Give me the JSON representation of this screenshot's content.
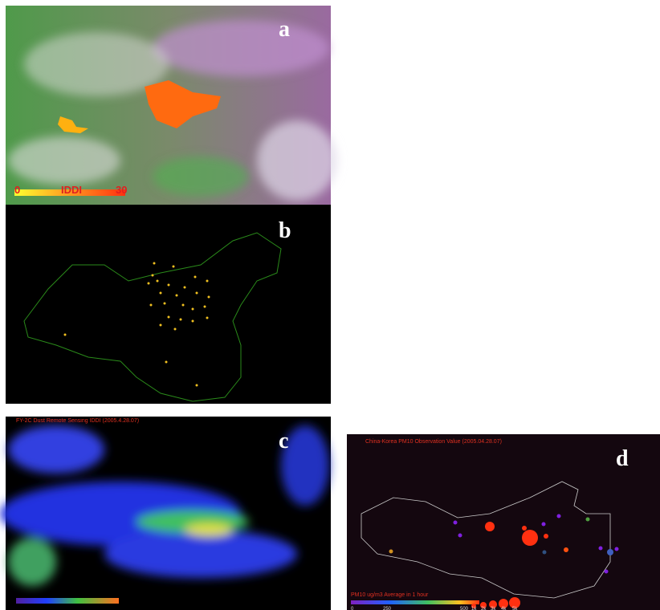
{
  "panels": [
    {
      "label": "a",
      "scale": {
        "min": "0",
        "title": "IDDI",
        "max": "30"
      }
    },
    {
      "label": "b"
    },
    {
      "label": "c",
      "title": "FY-2C Dust Remote Sensing IDDI (2005.4.28.07)"
    },
    {
      "label": "d",
      "title": "China-Korea PM10 Observation Value (2005.04.28.07)",
      "legend_title": "PM10 ug/m3 Average in 1 hour",
      "legend_ticks": [
        "0",
        "250",
        "500",
        "1k",
        "2k",
        "3k",
        "4k",
        "5k"
      ]
    }
  ]
}
